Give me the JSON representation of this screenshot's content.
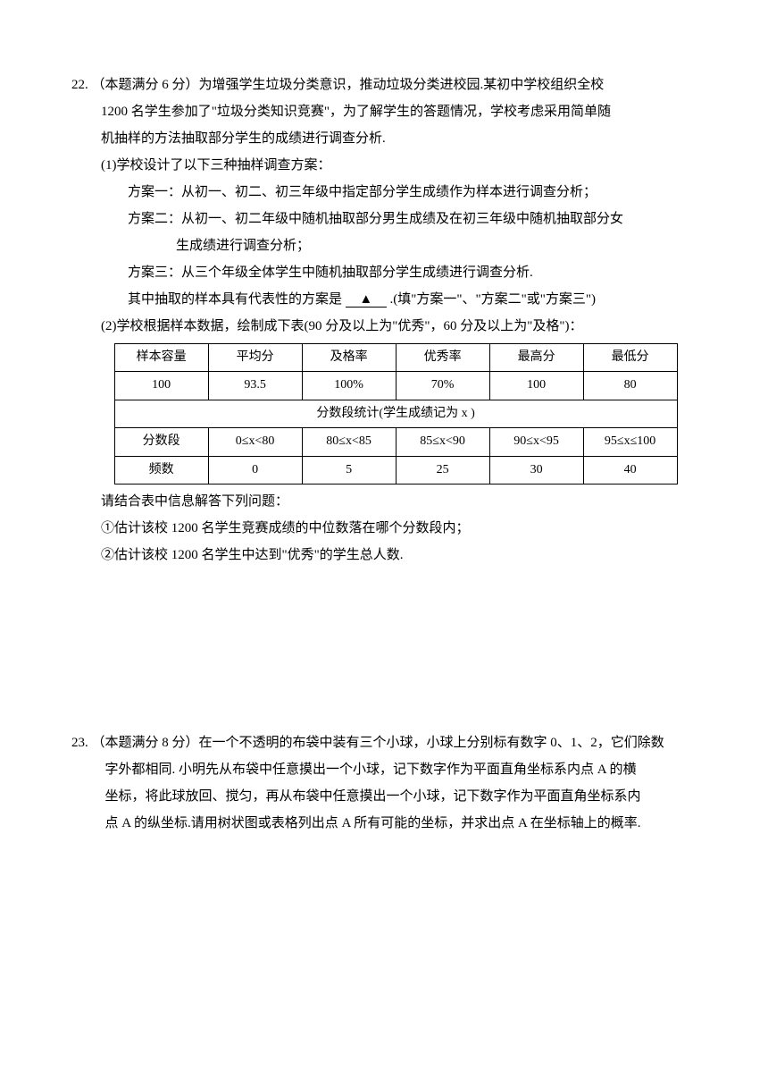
{
  "q22": {
    "number": "22.",
    "head": "（本题满分 6 分）为增强学生垃圾分类意识，推动垃圾分类进校园.某初中学校组织全校",
    "l2": "1200 名学生参加了\"垃圾分类知识竞赛\"，为了解学生的答题情况，学校考虑采用简单随",
    "l3": "机抽样的方法抽取部分学生的成绩进行调查分析.",
    "p1": "(1)学校设计了以下三种抽样调查方案：",
    "s1": "方案一：从初一、初二、初三年级中指定部分学生成绩作为样本进行调查分析；",
    "s2": "方案二：从初一、初二年级中随机抽取部分男生成绩及在初三年级中随机抽取部分女",
    "s2b": "生成绩进行调查分析；",
    "s3": "方案三：从三个年级全体学生中随机抽取部分学生成绩进行调查分析.",
    "rep_a": "其中抽取的样本具有代表性的方案是",
    "rep_b": ".(填\"方案一\"、\"方案二\"或\"方案三\")",
    "tri": "▲",
    "p2": "(2)学校根据样本数据，绘制成下表(90 分及以上为\"优秀\"，60 分及以上为\"及格\")：",
    "table": {
      "r1": [
        "样本容量",
        "平均分",
        "及格率",
        "优秀率",
        "最高分",
        "最低分"
      ],
      "r2": [
        "100",
        "93.5",
        "100%",
        "70%",
        "100",
        "80"
      ],
      "r3": "分数段统计(学生成绩记为 x )",
      "r4": [
        "分数段",
        "0≤x<80",
        "80≤x<85",
        "85≤x<90",
        "90≤x<95",
        "95≤x≤100"
      ],
      "r5": [
        "频数",
        "0",
        "5",
        "25",
        "30",
        "40"
      ]
    },
    "after": "请结合表中信息解答下列问题：",
    "q1": "①估计该校 1200 名学生竞赛成绩的中位数落在哪个分数段内；",
    "q2": "②估计该校 1200 名学生中达到\"优秀\"的学生总人数."
  },
  "q23": {
    "number": "23.",
    "head": "（本题满分 8 分）在一个不透明的布袋中装有三个小球，小球上分别标有数字 0、1、2，它们除数",
    "l2": "字外都相同. 小明先从布袋中任意摸出一个小球，记下数字作为平面直角坐标系内点 A 的横",
    "l3": "坐标，将此球放回、搅匀，再从布袋中任意摸出一个小球，记下数字作为平面直角坐标系内",
    "l4": "点 A 的纵坐标.请用树状图或表格列出点 A 所有可能的坐标，并求出点 A 在坐标轴上的概率."
  }
}
